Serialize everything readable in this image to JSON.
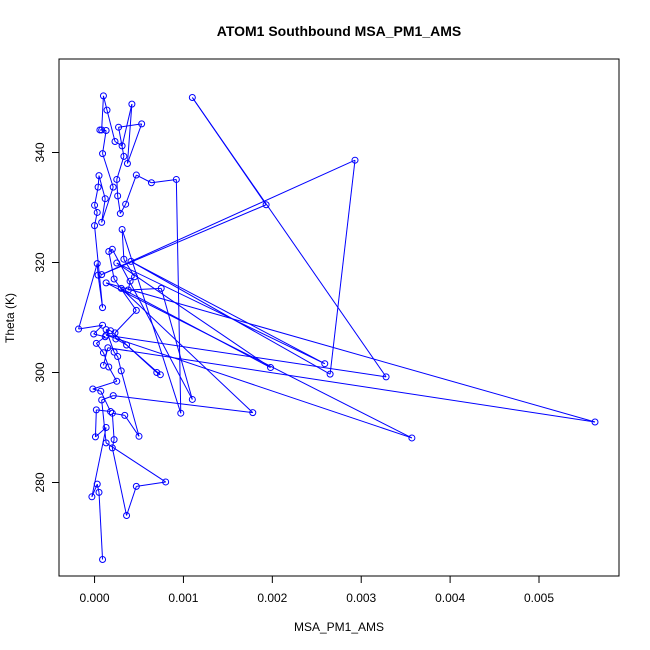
{
  "chart_data": {
    "type": "line",
    "title": "ATOM1 Southbound MSA_PM1_AMS",
    "xlabel": "MSA_PM1_AMS",
    "ylabel": "Theta (K)",
    "xlim": [
      -0.0004,
      0.0059
    ],
    "ylim": [
      263,
      357
    ],
    "x_ticks": [
      0.0,
      0.001,
      0.002,
      0.003,
      0.004,
      0.005
    ],
    "x_tick_labels": [
      "0.000",
      "0.001",
      "0.002",
      "0.003",
      "0.004",
      "0.005"
    ],
    "y_ticks": [
      280,
      300,
      320,
      340
    ],
    "y_tick_labels": [
      "280",
      "300",
      "320",
      "340"
    ],
    "grid": false,
    "legend": "none",
    "series": [
      {
        "color": "#0000ff",
        "marker": "open-circle",
        "points": [
          [
            9e-05,
            266.0
          ],
          [
            5e-05,
            278.2
          ],
          [
            3e-05,
            279.7
          ],
          [
            -3e-05,
            277.4
          ],
          [
            0.00013,
            290.0
          ],
          [
            1e-05,
            288.3
          ],
          [
            2e-05,
            293.2
          ],
          [
            0.00018,
            292.9
          ],
          [
            7e-05,
            296.6
          ],
          [
            -2e-05,
            297.0
          ],
          [
            0.00025,
            298.4
          ],
          [
            0.00016,
            301.0
          ],
          [
            0.0001,
            303.6
          ],
          [
            2e-05,
            305.3
          ],
          [
            0.00012,
            306.5
          ],
          [
            -1e-05,
            307.0
          ],
          [
            9e-05,
            308.6
          ],
          [
            -0.00018,
            307.9
          ],
          [
            3e-05,
            319.8
          ],
          [
            4e-05,
            317.7
          ],
          [
            9e-05,
            311.8
          ],
          [
            0.0,
            326.7
          ],
          [
            3e-05,
            329.1
          ],
          [
            0.0,
            330.4
          ],
          [
            4e-05,
            333.7
          ],
          [
            5e-05,
            335.8
          ],
          [
            0.00012,
            331.6
          ],
          [
            8e-05,
            327.3
          ],
          [
            0.00021,
            333.7
          ],
          [
            9e-05,
            339.8
          ],
          [
            0.00013,
            344.0
          ],
          [
            6e-05,
            344.1
          ],
          [
            8e-05,
            344.1
          ],
          [
            0.0001,
            350.3
          ],
          [
            0.00014,
            347.7
          ],
          [
            0.00023,
            342.0
          ],
          [
            0.00031,
            341.2
          ],
          [
            0.00042,
            348.8
          ],
          [
            0.00037,
            338.0
          ],
          [
            0.00053,
            345.2
          ],
          [
            0.00027,
            344.6
          ],
          [
            0.00033,
            339.3
          ],
          [
            0.00025,
            335.1
          ],
          [
            0.00026,
            332.1
          ],
          [
            0.00029,
            328.9
          ],
          [
            0.00035,
            330.6
          ],
          [
            0.00047,
            335.9
          ],
          [
            0.00064,
            334.5
          ],
          [
            0.00092,
            335.1
          ],
          [
            0.00097,
            292.6
          ],
          [
            0.00031,
            326.0
          ],
          [
            0.00033,
            320.6
          ],
          [
            0.00045,
            317.4
          ],
          [
            0.0004,
            316.6
          ],
          [
            0.00038,
            315.0
          ],
          [
            0.00075,
            315.3
          ],
          [
            0.0011,
            295.1
          ],
          [
            0.0002,
            322.4
          ],
          [
            0.00016,
            322.0
          ],
          [
            0.00022,
            317.0
          ],
          [
            0.00047,
            311.3
          ],
          [
            0.00023,
            307.2
          ],
          [
            0.00024,
            306.1
          ],
          [
            0.00036,
            305.0
          ],
          [
            0.0007,
            300.0
          ],
          [
            0.00074,
            299.6
          ],
          [
            0.00018,
            307.6
          ],
          [
            0.00013,
            307.8
          ],
          [
            0.00022,
            303.7
          ],
          [
            0.00026,
            302.9
          ],
          [
            0.0003,
            300.3
          ],
          [
            0.0005,
            288.4
          ],
          [
            0.00034,
            292.2
          ],
          [
            0.0002,
            292.6
          ],
          [
            0.00022,
            287.8
          ],
          [
            0.0002,
            286.3
          ],
          [
            0.00036,
            274.0
          ],
          [
            0.00047,
            279.3
          ],
          [
            0.0008,
            280.1
          ],
          [
            0.00013,
            287.2
          ],
          [
            8e-05,
            295.0
          ],
          [
            0.00021,
            295.8
          ],
          [
            0.00178,
            292.7
          ],
          [
            0.0003,
            315.3
          ],
          [
            0.00198,
            300.9
          ],
          [
            0.00025,
            319.9
          ],
          [
            0.00259,
            301.6
          ],
          [
            0.00041,
            320.2
          ],
          [
            0.00265,
            299.7
          ],
          [
            0.00293,
            338.6
          ],
          [
            8e-05,
            317.8
          ],
          [
            0.00193,
            330.5
          ],
          [
            0.0011,
            350.0
          ],
          [
            0.00328,
            299.2
          ],
          [
            0.00013,
            306.8
          ],
          [
            0.00357,
            288.1
          ],
          [
            0.00013,
            316.3
          ],
          [
            0.00563,
            291.0
          ],
          [
            0.00015,
            304.5
          ],
          [
            0.0001,
            301.3
          ]
        ]
      }
    ]
  }
}
